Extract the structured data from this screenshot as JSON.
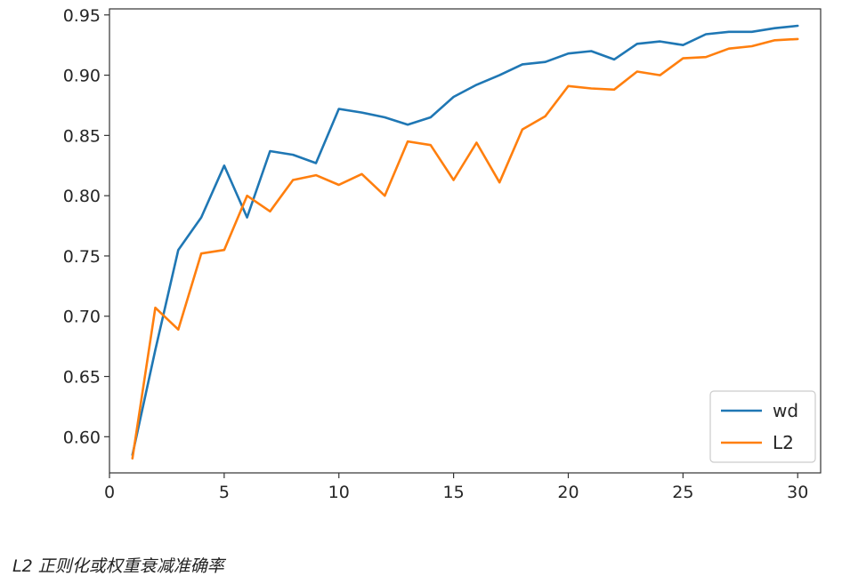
{
  "caption": "L2 正则化或权重衰减准确率",
  "chart_data": {
    "type": "line",
    "title": "",
    "xlabel": "",
    "ylabel": "",
    "xlim": [
      0,
      31
    ],
    "ylim": [
      0.57,
      0.955
    ],
    "xticks": [
      0,
      5,
      10,
      15,
      20,
      25,
      30
    ],
    "yticks": [
      0.6,
      0.65,
      0.7,
      0.75,
      0.8,
      0.85,
      0.9,
      0.95
    ],
    "grid": false,
    "legend_position": "lower-right",
    "x": [
      1,
      2,
      3,
      4,
      5,
      6,
      7,
      8,
      9,
      10,
      11,
      12,
      13,
      14,
      15,
      16,
      17,
      18,
      19,
      20,
      21,
      22,
      23,
      24,
      25,
      26,
      27,
      28,
      29,
      30
    ],
    "series": [
      {
        "name": "wd",
        "color": "#1f77b4",
        "values": [
          0.585,
          0.672,
          0.755,
          0.782,
          0.825,
          0.782,
          0.837,
          0.834,
          0.827,
          0.872,
          0.869,
          0.865,
          0.859,
          0.865,
          0.882,
          0.892,
          0.9,
          0.909,
          0.911,
          0.918,
          0.92,
          0.913,
          0.926,
          0.928,
          0.925,
          0.934,
          0.936,
          0.936,
          0.939,
          0.941
        ]
      },
      {
        "name": "L2",
        "color": "#ff7f0e",
        "values": [
          0.582,
          0.707,
          0.689,
          0.752,
          0.755,
          0.8,
          0.787,
          0.813,
          0.817,
          0.809,
          0.818,
          0.8,
          0.845,
          0.842,
          0.813,
          0.844,
          0.811,
          0.855,
          0.866,
          0.891,
          0.889,
          0.888,
          0.903,
          0.9,
          0.914,
          0.915,
          0.922,
          0.924,
          0.929,
          0.93
        ]
      }
    ]
  }
}
